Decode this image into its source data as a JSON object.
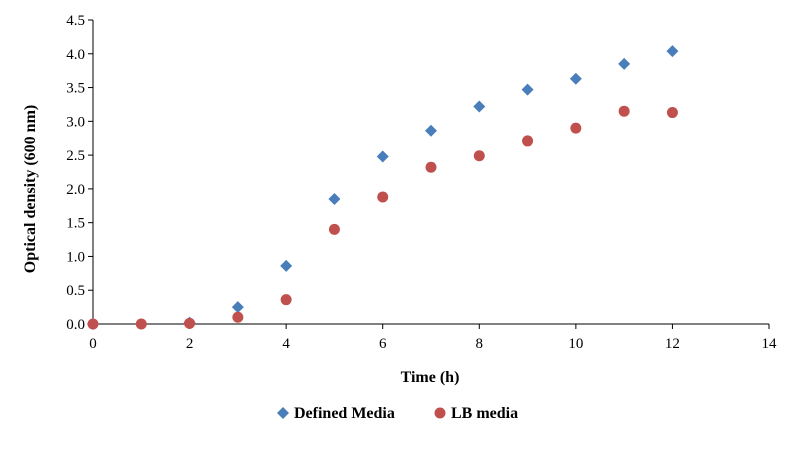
{
  "chart_data": {
    "type": "scatter",
    "xlabel": "Time (h)",
    "ylabel": "Optical density (600 nm)",
    "xlim": [
      0,
      14
    ],
    "ylim": [
      0,
      4.5
    ],
    "x_ticks": [
      "0",
      "2",
      "4",
      "6",
      "8",
      "10",
      "12",
      "14"
    ],
    "y_ticks": [
      "0.0",
      "0.5",
      "1.0",
      "1.5",
      "2.0",
      "2.5",
      "3.0",
      "3.5",
      "4.0",
      "4.5"
    ],
    "grid": false,
    "legend_position": "bottom",
    "series": [
      {
        "name": "Defined Media",
        "marker": "diamond",
        "color": "#4a7ebb",
        "x": [
          0,
          2,
          3,
          4,
          5,
          6,
          7,
          8,
          9,
          10,
          11,
          12
        ],
        "y": [
          0.0,
          0.02,
          0.25,
          0.86,
          1.85,
          2.48,
          2.86,
          3.22,
          3.47,
          3.63,
          3.85,
          4.04
        ]
      },
      {
        "name": "LB media",
        "marker": "circle",
        "color": "#c0504d",
        "x": [
          0,
          1,
          2,
          3,
          4,
          5,
          6,
          7,
          8,
          9,
          10,
          11,
          12
        ],
        "y": [
          0.0,
          0.0,
          0.01,
          0.1,
          0.36,
          1.4,
          1.88,
          2.32,
          2.49,
          2.71,
          2.9,
          3.15,
          3.13
        ]
      }
    ]
  }
}
